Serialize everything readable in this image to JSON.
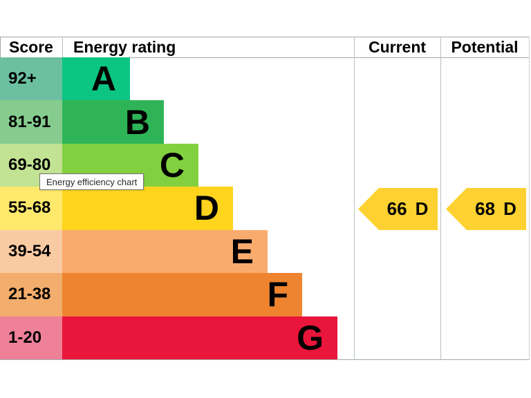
{
  "header": {
    "score": "Score",
    "rating": "Energy rating",
    "current": "Current",
    "potential": "Potential"
  },
  "tooltip": {
    "text": "Energy efficiency chart"
  },
  "chart_data": {
    "type": "bar",
    "title": "Energy efficiency chart",
    "note": "UK EPC energy efficiency rating chart; bar length encodes grade band, arrows mark current and potential scores",
    "categories": [
      "A",
      "B",
      "C",
      "D",
      "E",
      "F",
      "G"
    ],
    "bands": [
      {
        "grade": "A",
        "range": "92+",
        "bar_color": "#0cc582",
        "range_color": "#6cc0a1"
      },
      {
        "grade": "B",
        "range": "81-91",
        "bar_color": "#2eb457",
        "range_color": "#86cc8e"
      },
      {
        "grade": "C",
        "range": "69-80",
        "bar_color": "#82d03f",
        "range_color": "#c2e294"
      },
      {
        "grade": "D",
        "range": "55-68",
        "bar_color": "#fed41d",
        "range_color": "#ffe96d"
      },
      {
        "grade": "E",
        "range": "39-54",
        "bar_color": "#f9ab6d",
        "range_color": "#f9cba3"
      },
      {
        "grade": "F",
        "range": "21-38",
        "bar_color": "#ee8430",
        "range_color": "#f3ad6c"
      },
      {
        "grade": "G",
        "range": "1-20",
        "bar_color": "#e9153b",
        "range_color": "#ee8098"
      }
    ],
    "current": {
      "value": "66",
      "grade": "D",
      "arrow_color": "#fdd131",
      "row": "55-68"
    },
    "potential": {
      "value": "68",
      "grade": "D",
      "arrow_color": "#fdd131",
      "row": "55-68"
    }
  }
}
